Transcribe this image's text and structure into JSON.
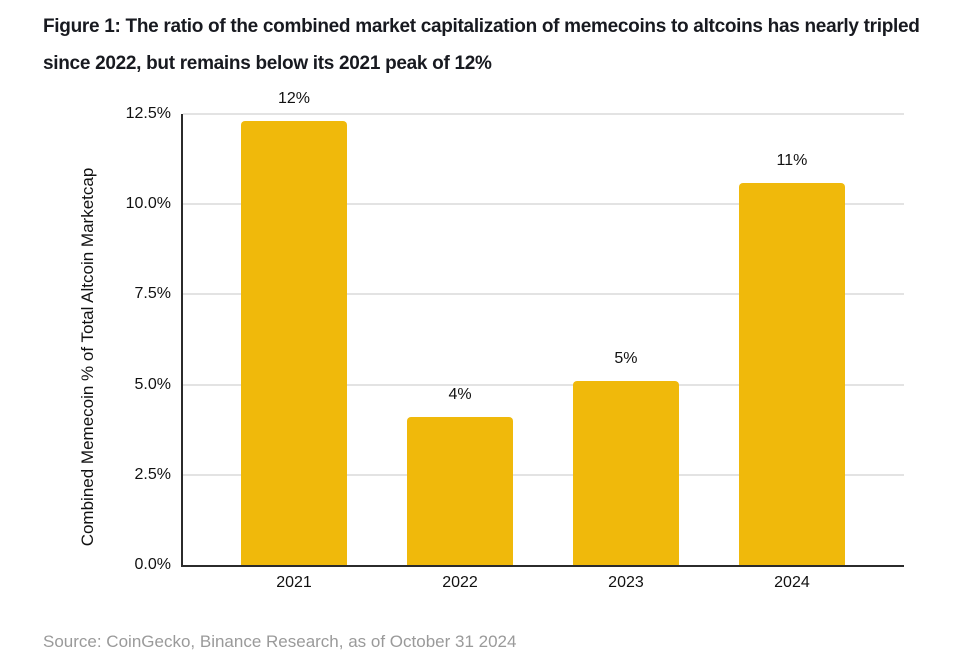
{
  "figure": {
    "title": "Figure 1: The ratio of the combined market capitalization of memecoins to altcoins has nearly tripled since 2022, but remains below its 2021 peak of 12%",
    "source": "Source: CoinGecko, Binance Research, as of October 31 2024"
  },
  "colors": {
    "bar": "#F0B90B",
    "axis": "#2B2B2B",
    "grid": "#E3E3E3",
    "title_text": "#181A20",
    "tick_text": "#111111",
    "source_text": "#9A9A9A"
  },
  "chart_data": {
    "type": "bar",
    "title": "",
    "xlabel": "",
    "ylabel": "Combined Memecoin % of Total Altcoin Marketcap",
    "categories": [
      "2021",
      "2022",
      "2023",
      "2024"
    ],
    "values": [
      12.3,
      4.1,
      5.1,
      10.6
    ],
    "bar_labels": [
      "12%",
      "4%",
      "5%",
      "11%"
    ],
    "ylim": [
      0,
      12.5
    ],
    "ytick_values": [
      0,
      2.5,
      5,
      7.5,
      10,
      12.5
    ],
    "ytick_labels": [
      "0.0%",
      "2.5%",
      "5.0%",
      "7.5%",
      "10.0%",
      "12.5%"
    ],
    "grid": "horizontal",
    "legend": "none",
    "bar_color": "#F0B90B"
  }
}
